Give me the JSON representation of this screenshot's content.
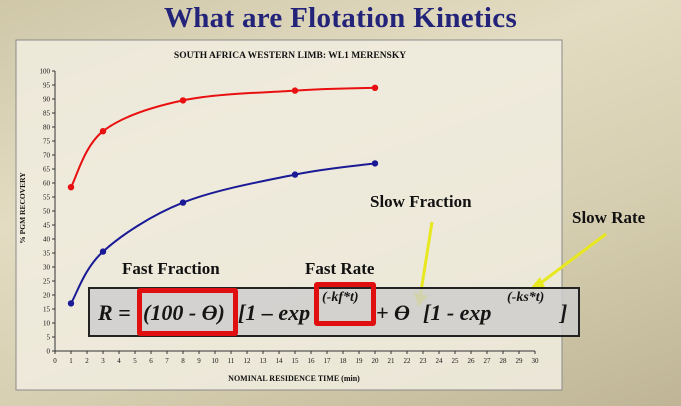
{
  "slide_title": "What are Flotation Kinetics",
  "colors": {
    "title": "#23237a",
    "red_series": "#e81010",
    "blue_series": "#1a1a96",
    "arrow": "#e8e820",
    "highlight": "#e01010"
  },
  "annotations": {
    "fast_fraction": "Fast Fraction",
    "fast_rate": "Fast Rate",
    "slow_fraction": "Slow Fraction",
    "slow_rate": "Slow Rate"
  },
  "formula": {
    "lhs": "R =",
    "fast_fraction_term": "(100 - ϴ)",
    "bracket_1": "[1 – exp",
    "fast_exponent": "(-kf*t)",
    "plus_theta": "+ ϴ",
    "bracket_2": "[1 - exp",
    "slow_exponent": "(-ks*t)",
    "close": "]"
  },
  "chart_data": {
    "type": "line",
    "title": "SOUTH AFRICA WESTERN LIMB:  WL1 MERENSKY",
    "xlabel": "NOMINAL RESIDENCE TIME (min)",
    "ylabel": "% PGM RECOVERY",
    "xlim": [
      0,
      30
    ],
    "ylim": [
      0,
      100
    ],
    "x_ticks": [
      0,
      1,
      2,
      3,
      4,
      5,
      6,
      7,
      8,
      9,
      10,
      11,
      12,
      13,
      14,
      15,
      16,
      17,
      18,
      19,
      20,
      21,
      22,
      23,
      24,
      25,
      26,
      27,
      28,
      29,
      30
    ],
    "y_ticks": [
      0,
      5,
      10,
      15,
      20,
      25,
      30,
      35,
      40,
      45,
      50,
      55,
      60,
      65,
      70,
      75,
      80,
      85,
      90,
      95,
      100
    ],
    "series": [
      {
        "color": "#e81010",
        "x": [
          1,
          3,
          8,
          15,
          20
        ],
        "y": [
          58.5,
          78.5,
          89.5,
          93,
          94
        ]
      },
      {
        "color": "#1a1a96",
        "x": [
          1,
          3,
          8,
          15,
          20
        ],
        "y": [
          17,
          35.5,
          53,
          63,
          67
        ]
      }
    ]
  }
}
